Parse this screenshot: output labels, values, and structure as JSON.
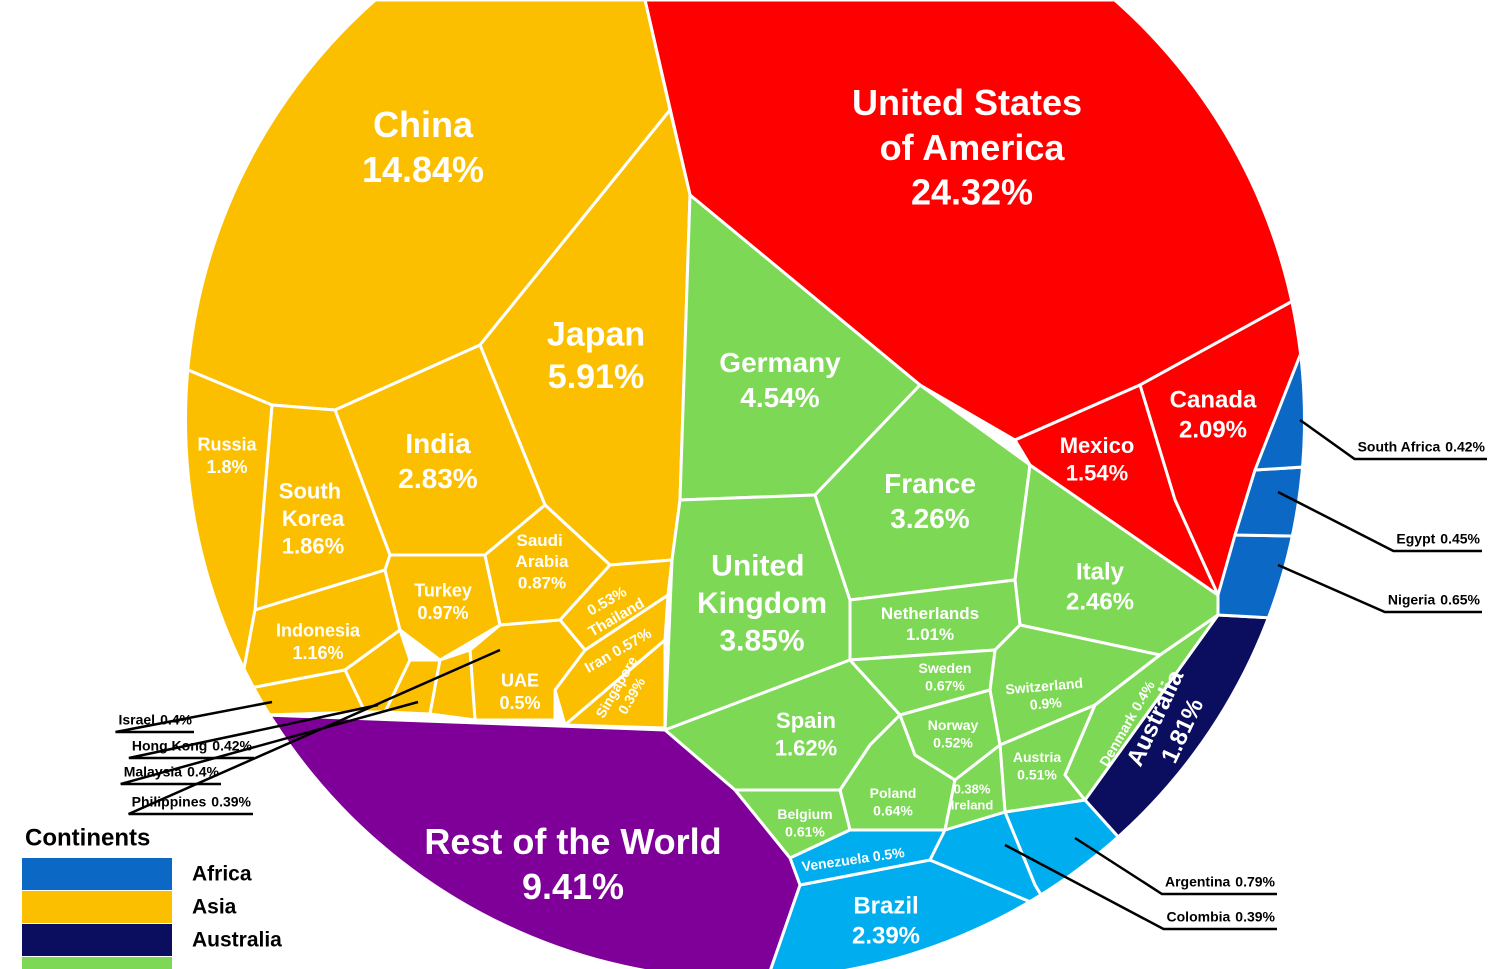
{
  "chart_data": {
    "type": "voronoi",
    "categories": [
      "United States of America",
      "China",
      "Japan",
      "Germany",
      "United Kingdom",
      "France",
      "India",
      "Italy",
      "Brazil",
      "Canada",
      "South Korea",
      "Australia",
      "Russia",
      "Spain",
      "Mexico",
      "Indonesia",
      "Netherlands",
      "Turkey",
      "Switzerland",
      "Saudi Arabia",
      "Argentina",
      "Sweden",
      "Nigeria",
      "Poland",
      "Belgium",
      "Iran",
      "Thailand",
      "Norway",
      "Austria",
      "UAE",
      "Venezuela",
      "Egypt",
      "South Africa",
      "Hong Kong",
      "Israel",
      "Malaysia",
      "Denmark",
      "Philippines",
      "Singapore",
      "Colombia",
      "Ireland",
      "Rest of the World"
    ],
    "values": [
      24.32,
      14.84,
      5.91,
      4.54,
      3.85,
      3.26,
      2.83,
      2.46,
      2.39,
      2.09,
      1.86,
      1.81,
      1.8,
      1.62,
      1.54,
      1.16,
      1.01,
      0.97,
      0.9,
      0.87,
      0.79,
      0.67,
      0.65,
      0.64,
      0.61,
      0.57,
      0.53,
      0.52,
      0.51,
      0.5,
      0.5,
      0.45,
      0.42,
      0.42,
      0.4,
      0.4,
      0.4,
      0.39,
      0.39,
      0.39,
      0.38,
      9.41
    ],
    "value_labels": [
      "24.32%",
      "14.84%",
      "5.91%",
      "4.54%",
      "3.85%",
      "3.26%",
      "2.83%",
      "2.46%",
      "2.39%",
      "2.09%",
      "1.86%",
      "1.81%",
      "1.8%",
      "1.62%",
      "1.54%",
      "1.16%",
      "1.01%",
      "0.97%",
      "0.9%",
      "0.87%",
      "0.79%",
      "0.67%",
      "0.65%",
      "0.64%",
      "0.61%",
      "0.57%",
      "0.53%",
      "0.52%",
      "0.51%",
      "0.5%",
      "0.5%",
      "0.45%",
      "0.42%",
      "0.42%",
      "0.4%",
      "0.4%",
      "0.4%",
      "0.39%",
      "0.39%",
      "0.39%",
      "0.38%",
      "9.41%"
    ],
    "colors": [
      "#ff0000",
      "#fcbf00",
      "#fcbf00",
      "#7dd955",
      "#7dd955",
      "#7dd955",
      "#fcbf00",
      "#7dd955",
      "#00aeef",
      "#ff0000",
      "#fcbf00",
      "#0b0e5e",
      "#fcbf00",
      "#7dd955",
      "#ff0000",
      "#fcbf00",
      "#7dd955",
      "#fcbf00",
      "#7dd955",
      "#fcbf00",
      "#00aeef",
      "#7dd955",
      "#0b68c4",
      "#7dd955",
      "#7dd955",
      "#fcbf00",
      "#fcbf00",
      "#7dd955",
      "#7dd955",
      "#fcbf00",
      "#00aeef",
      "#0b68c4",
      "#0b68c4",
      "#fcbf00",
      "#fcbf00",
      "#fcbf00",
      "#7dd955",
      "#fcbf00",
      "#fcbf00",
      "#00aeef",
      "#7dd955",
      "#7e0098"
    ],
    "legend": {
      "title": "Continents",
      "entries": [
        {
          "name": "Africa",
          "color": "#0b68c4"
        },
        {
          "name": "Asia",
          "color": "#fcbf00"
        },
        {
          "name": "Australia",
          "color": "#0b0e5e"
        }
      ]
    }
  }
}
